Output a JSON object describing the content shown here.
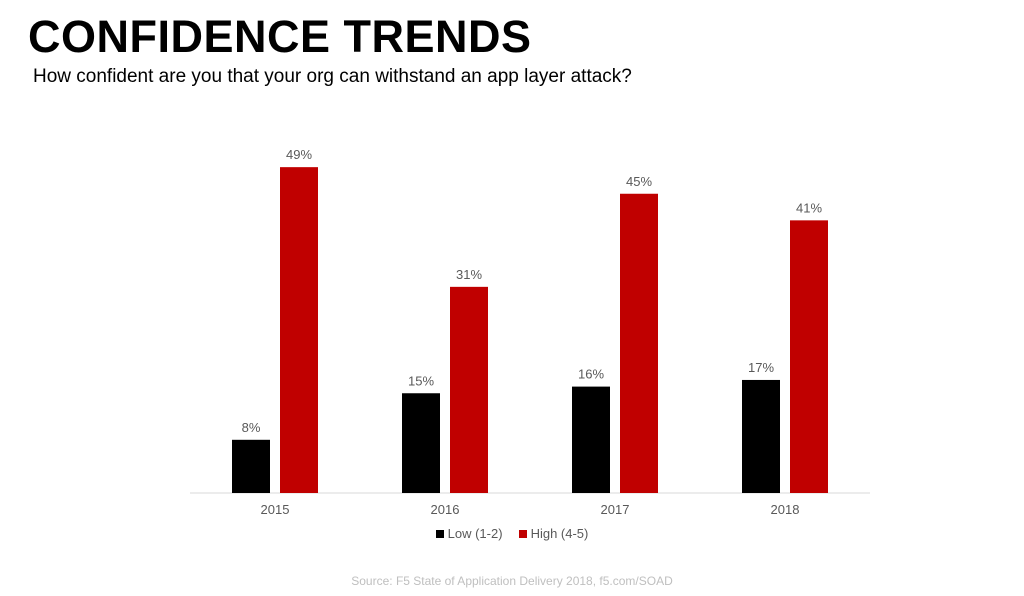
{
  "title": "CONFIDENCE TRENDS",
  "subtitle": "How confident are you that your org can withstand an app layer attack?",
  "source": "Source: F5 State of Application Delivery 2018, f5.com/SOAD",
  "colors": {
    "low": "#000000",
    "high": "#c00000",
    "axis": "#d9d9d9",
    "label": "#595959"
  },
  "chart_data": {
    "type": "bar",
    "categories": [
      "2015",
      "2016",
      "2017",
      "2018"
    ],
    "series": [
      {
        "name": "Low (1-2)",
        "values": [
          8,
          15,
          16,
          17
        ],
        "labels": [
          "8%",
          "15%",
          "16%",
          "17%"
        ]
      },
      {
        "name": "High (4-5)",
        "values": [
          49,
          31,
          45,
          41
        ],
        "labels": [
          "49%",
          "31%",
          "45%",
          "41%"
        ]
      }
    ],
    "title": "CONFIDENCE TRENDS",
    "subtitle": "How confident are you that your org can withstand an app layer attack?",
    "xlabel": "",
    "ylabel": "",
    "ylim": [
      0,
      50
    ],
    "grid": false,
    "legend": "bottom-center"
  }
}
